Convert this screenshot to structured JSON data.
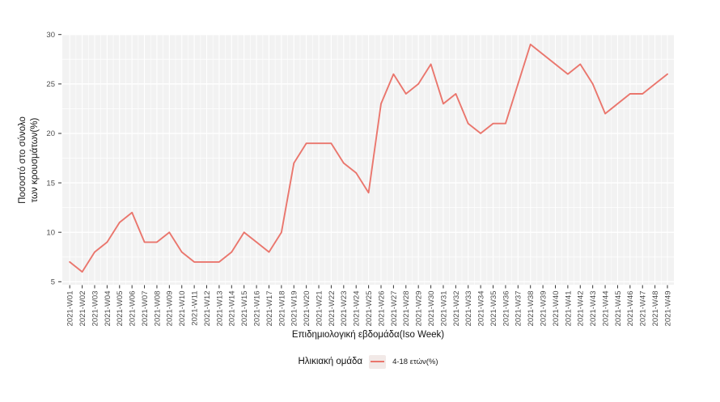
{
  "colors": {
    "line": "#EA766D",
    "panel_bg": "#F2F2F2",
    "grid": "#FFFFFF",
    "tick_label": "#4D4D4D",
    "tick_mark": "#333333",
    "axis_title": "#111111",
    "legend_key_bg": "#F2E9E7",
    "page_bg": "#FFFFFF"
  },
  "chart_data": {
    "type": "line",
    "title": "",
    "xlabel": "Επιδημιολογική εβδομάδα(Iso Week)",
    "ylabel": "Ποσοστό στο σύνολο των κρουσμάτων(%)",
    "ylabel_line1": "Ποσοστό στο σύνολο",
    "ylabel_line2": "των κρουσμάτων(%)",
    "ylim": [
      5,
      30
    ],
    "yticks": [
      5,
      10,
      15,
      20,
      25,
      30
    ],
    "grid": "white major+minor gridlines on grey panel",
    "legend_position": "bottom",
    "categories": [
      "2021-W01",
      "2021-W02",
      "2021-W03",
      "2021-W04",
      "2021-W05",
      "2021-W06",
      "2021-W07",
      "2021-W08",
      "2021-W09",
      "2021-W10",
      "2021-W11",
      "2021-W12",
      "2021-W13",
      "2021-W14",
      "2021-W15",
      "2021-W16",
      "2021-W17",
      "2021-W18",
      "2021-W19",
      "2021-W20",
      "2021-W21",
      "2021-W22",
      "2021-W23",
      "2021-W24",
      "2021-W25",
      "2021-W26",
      "2021-W27",
      "2021-W28",
      "2021-W29",
      "2021-W30",
      "2021-W31",
      "2021-W32",
      "2021-W33",
      "2021-W34",
      "2021-W35",
      "2021-W36",
      "2021-W37",
      "2021-W38",
      "2021-W39",
      "2021-W40",
      "2021-W41",
      "2021-W42",
      "2021-W43",
      "2021-W44",
      "2021-W45",
      "2021-W46",
      "2021-W47",
      "2021-W48",
      "2021-W49"
    ],
    "series": [
      {
        "name": "4-18 ετών(%)",
        "color": "#EA766D",
        "values": [
          7,
          6,
          8,
          9,
          11,
          12,
          9,
          9,
          10,
          8,
          7,
          7,
          7,
          8,
          10,
          9,
          8,
          10,
          17,
          19,
          19,
          19,
          17,
          16,
          14,
          23,
          26,
          24,
          25,
          27,
          23,
          24,
          21,
          20,
          21,
          21,
          25,
          29,
          28,
          27,
          26,
          27,
          25,
          22,
          23,
          24,
          24,
          25,
          26
        ]
      }
    ],
    "legend": {
      "title": "Ηλικιακή ομάδα",
      "entries": [
        {
          "label": "4-18 ετών(%)",
          "color": "#EA766D"
        }
      ]
    }
  }
}
